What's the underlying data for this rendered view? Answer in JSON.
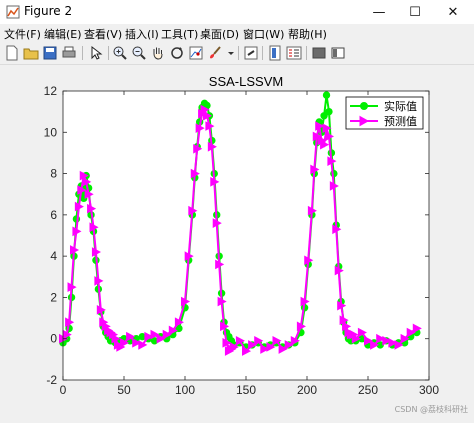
{
  "window": {
    "title": "Figure 2",
    "minimize_symbol": "—",
    "maximize_symbol": "☐",
    "close_symbol": "✕"
  },
  "menu": {
    "items": [
      "文件(F)",
      "编辑(E)",
      "查看(V)",
      "插入(I)",
      "工具(T)",
      "桌面(D)",
      "窗口(W)",
      "帮助(H)"
    ]
  },
  "toolbar": {
    "icons": [
      "new-figure-icon",
      "open-file-icon",
      "save-icon",
      "print-icon",
      "edit-plot-arrow-icon",
      "zoom-in-icon",
      "zoom-out-icon",
      "pan-hand-icon",
      "rotate-3d-icon",
      "data-cursor-icon",
      "brush-icon",
      "brush-dropdown-icon",
      "link-plot-icon",
      "colorbar-icon",
      "legend-icon",
      "hide-plot-tools-icon",
      "show-plot-tools-icon"
    ]
  },
  "colors": {
    "actual": "#00ee00",
    "predicted": "#ff00ff",
    "axes_bg": "#ffffff",
    "figure_bg": "#f0f0f0"
  },
  "watermark": "CSDN @荔枝科研社",
  "chart_data": {
    "type": "line",
    "title": "SSA-LSSVM",
    "xlabel": "",
    "ylabel": "",
    "xlim": [
      0,
      300
    ],
    "ylim": [
      -2,
      12
    ],
    "xticks": [
      0,
      50,
      100,
      150,
      200,
      250,
      300
    ],
    "yticks": [
      -2,
      0,
      2,
      4,
      6,
      8,
      10,
      12
    ],
    "grid": false,
    "legend_position": "top-right",
    "series": [
      {
        "name": "实际值",
        "marker": "circle",
        "x": [
          0,
          3,
          5,
          7,
          9,
          11,
          13,
          15,
          17,
          19,
          21,
          23,
          25,
          27,
          29,
          31,
          33,
          35,
          37,
          39,
          41,
          43,
          45,
          47,
          50,
          55,
          60,
          65,
          70,
          75,
          80,
          85,
          90,
          95,
          100,
          103,
          106,
          108,
          110,
          112,
          114,
          116,
          118,
          120,
          122,
          124,
          126,
          128,
          130,
          132,
          134,
          136,
          138,
          140,
          145,
          150,
          155,
          160,
          165,
          170,
          175,
          180,
          185,
          190,
          195,
          198,
          201,
          204,
          206,
          208,
          210,
          212,
          214,
          216,
          218,
          220,
          222,
          224,
          226,
          228,
          230,
          232,
          234,
          236,
          238,
          240,
          245,
          250,
          255,
          260,
          265,
          270,
          275,
          280,
          285,
          290
        ],
        "values": [
          -0.2,
          0.0,
          0.5,
          2.0,
          4.0,
          5.8,
          7.0,
          7.4,
          6.8,
          7.9,
          7.3,
          6.0,
          5.2,
          3.8,
          2.4,
          1.3,
          0.6,
          0.3,
          0.1,
          -0.1,
          -0.1,
          -0.2,
          -0.2,
          -0.1,
          0.0,
          -0.1,
          0.0,
          0.1,
          0.0,
          -0.1,
          0.1,
          0.0,
          0.2,
          0.5,
          1.5,
          3.8,
          6.0,
          7.8,
          9.3,
          10.5,
          11.2,
          11.4,
          11.3,
          10.8,
          9.6,
          8.0,
          6.0,
          4.0,
          2.2,
          0.8,
          0.3,
          0.1,
          -0.1,
          -0.3,
          -0.2,
          -0.4,
          -0.3,
          -0.2,
          -0.4,
          -0.3,
          -0.2,
          -0.4,
          -0.3,
          -0.2,
          0.3,
          1.5,
          3.6,
          6.0,
          8.0,
          9.5,
          10.5,
          10.0,
          10.8,
          11.8,
          11.0,
          9.0,
          8.0,
          5.5,
          3.5,
          1.8,
          0.8,
          0.3,
          0.0,
          -0.1,
          0.0,
          -0.1,
          0.0,
          -0.3,
          -0.2,
          -0.3,
          -0.1,
          -0.3,
          -0.2,
          -0.2,
          0.1,
          0.3
        ]
      },
      {
        "name": "预测值",
        "marker": "triangle-right",
        "x": [
          0,
          3,
          5,
          7,
          9,
          11,
          13,
          15,
          17,
          19,
          21,
          23,
          25,
          27,
          29,
          31,
          33,
          35,
          37,
          39,
          41,
          43,
          45,
          47,
          50,
          55,
          60,
          65,
          70,
          75,
          80,
          85,
          90,
          95,
          100,
          103,
          106,
          108,
          110,
          112,
          114,
          116,
          118,
          120,
          122,
          124,
          126,
          128,
          130,
          132,
          134,
          136,
          138,
          140,
          145,
          150,
          155,
          160,
          165,
          170,
          175,
          180,
          185,
          190,
          195,
          198,
          201,
          204,
          206,
          208,
          210,
          212,
          214,
          216,
          218,
          220,
          222,
          224,
          226,
          228,
          230,
          232,
          234,
          236,
          238,
          240,
          245,
          250,
          255,
          260,
          265,
          270,
          275,
          280,
          285,
          290
        ],
        "values": [
          0.0,
          0.2,
          0.8,
          2.5,
          4.3,
          5.2,
          6.4,
          7.2,
          7.9,
          7.6,
          7.0,
          6.3,
          5.4,
          4.2,
          2.8,
          1.4,
          0.8,
          0.6,
          0.4,
          0.3,
          0.2,
          0.0,
          -0.3,
          -0.4,
          -0.2,
          0.1,
          -0.2,
          -0.3,
          0.1,
          0.2,
          0.0,
          0.2,
          0.4,
          0.8,
          1.8,
          4.0,
          6.2,
          8.0,
          9.2,
          10.2,
          10.9,
          11.1,
          10.8,
          10.3,
          9.3,
          7.6,
          5.6,
          3.6,
          1.8,
          0.6,
          -0.2,
          -0.6,
          -0.5,
          -0.4,
          -0.1,
          -0.6,
          -0.3,
          -0.1,
          -0.5,
          -0.4,
          -0.1,
          -0.5,
          -0.3,
          -0.1,
          0.6,
          1.8,
          3.8,
          6.2,
          8.2,
          9.8,
          10.3,
          9.6,
          9.4,
          10.2,
          9.8,
          8.6,
          7.4,
          5.3,
          3.3,
          1.6,
          0.9,
          0.6,
          0.3,
          0.2,
          0.2,
          0.0,
          0.3,
          -0.1,
          -0.3,
          0.0,
          -0.1,
          -0.2,
          -0.3,
          0.0,
          0.3,
          0.5
        ]
      }
    ]
  }
}
